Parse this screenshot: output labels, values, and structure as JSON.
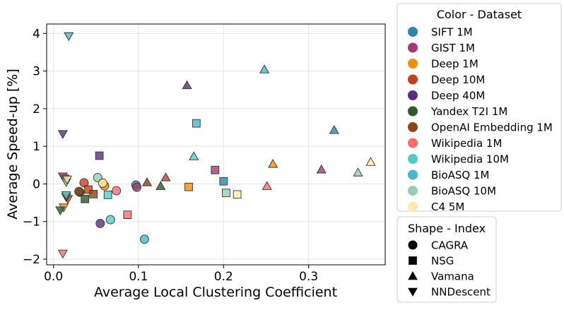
{
  "chart_data": {
    "type": "scatter",
    "title": "",
    "xlabel": "Average Local Clustering Coefficient",
    "ylabel": "Average Speed-up [%]",
    "xlim": [
      -0.008,
      0.39
    ],
    "ylim": [
      -2.15,
      4.25
    ],
    "xticks": [
      0.0,
      0.1,
      0.2,
      0.3
    ],
    "xtick_labels": [
      "0.0",
      "0.1",
      "0.2",
      "0.3"
    ],
    "yticks": [
      -2,
      -1,
      0,
      1,
      2,
      3,
      4
    ],
    "ytick_labels": [
      "−2",
      "−1",
      "0",
      "1",
      "2",
      "3",
      "4"
    ],
    "grid": true,
    "legend_color": {
      "title": "Color - Dataset",
      "placement": "outside-right-top",
      "entries": [
        {
          "label": "SIFT 1M",
          "color": "#2e86ab"
        },
        {
          "label": "GIST 1M",
          "color": "#a23b72"
        },
        {
          "label": "Deep 1M",
          "color": "#f18f01"
        },
        {
          "label": "Deep 10M",
          "color": "#c73e1d"
        },
        {
          "label": "Deep 40M",
          "color": "#592e83"
        },
        {
          "label": "Yandex T2I 1M",
          "color": "#2d5a27"
        },
        {
          "label": "OpenAI Embedding 1M",
          "color": "#8b4513"
        },
        {
          "label": "Wikipedia 1M",
          "color": "#ff6b6b"
        },
        {
          "label": "Wikipedia 10M",
          "color": "#4ecdc4"
        },
        {
          "label": "BioASQ 1M",
          "color": "#45b7d1"
        },
        {
          "label": "BioASQ 10M",
          "color": "#96ceb4"
        },
        {
          "label": "C4 5M",
          "color": "#ffeaa7"
        }
      ]
    },
    "legend_shape": {
      "title": "Shape - Index",
      "placement": "outside-right-bottom",
      "entries": [
        {
          "label": "CAGRA",
          "marker": "circle"
        },
        {
          "label": "NSG",
          "marker": "square"
        },
        {
          "label": "Vamana",
          "marker": "triangle-up"
        },
        {
          "label": "NNDescent",
          "marker": "triangle-down"
        }
      ]
    },
    "points": [
      {
        "dataset": "SIFT 1M",
        "index": "CAGRA",
        "x": 0.097,
        "y": -0.03
      },
      {
        "dataset": "SIFT 1M",
        "index": "NSG",
        "x": 0.2,
        "y": 0.07
      },
      {
        "dataset": "SIFT 1M",
        "index": "Vamana",
        "x": 0.33,
        "y": 1.43
      },
      {
        "dataset": "SIFT 1M",
        "index": "NNDescent",
        "x": 0.013,
        "y": 0.15
      },
      {
        "dataset": "GIST 1M",
        "index": "CAGRA",
        "x": 0.098,
        "y": -0.09
      },
      {
        "dataset": "GIST 1M",
        "index": "NSG",
        "x": 0.19,
        "y": 0.37
      },
      {
        "dataset": "GIST 1M",
        "index": "Vamana",
        "x": 0.315,
        "y": 0.38
      },
      {
        "dataset": "GIST 1M",
        "index": "NNDescent",
        "x": 0.011,
        "y": 0.2
      },
      {
        "dataset": "Deep 1M",
        "index": "CAGRA",
        "x": 0.06,
        "y": -0.05
      },
      {
        "dataset": "Deep 1M",
        "index": "NSG",
        "x": 0.159,
        "y": -0.08
      },
      {
        "dataset": "Deep 1M",
        "index": "Vamana",
        "x": 0.258,
        "y": 0.53
      },
      {
        "dataset": "Deep 1M",
        "index": "NNDescent",
        "x": 0.012,
        "y": -0.62
      },
      {
        "dataset": "Deep 10M",
        "index": "CAGRA",
        "x": 0.036,
        "y": 0.03
      },
      {
        "dataset": "Deep 10M",
        "index": "NSG",
        "x": 0.041,
        "y": -0.15
      },
      {
        "dataset": "Deep 10M",
        "index": "Vamana",
        "x": 0.132,
        "y": 0.17
      },
      {
        "dataset": "Deep 10M",
        "index": "NNDescent",
        "x": 0.017,
        "y": -0.4
      },
      {
        "dataset": "Deep 40M",
        "index": "CAGRA",
        "x": 0.055,
        "y": -1.05
      },
      {
        "dataset": "Deep 40M",
        "index": "NSG",
        "x": 0.054,
        "y": 0.75
      },
      {
        "dataset": "Deep 40M",
        "index": "Vamana",
        "x": 0.157,
        "y": 2.62
      },
      {
        "dataset": "Deep 40M",
        "index": "NNDescent",
        "x": 0.011,
        "y": 1.33
      },
      {
        "dataset": "Yandex T2I 1M",
        "index": "CAGRA",
        "x": 0.031,
        "y": -0.22
      },
      {
        "dataset": "Yandex T2I 1M",
        "index": "NSG",
        "x": 0.037,
        "y": -0.4
      },
      {
        "dataset": "Yandex T2I 1M",
        "index": "Vamana",
        "x": 0.126,
        "y": -0.06
      },
      {
        "dataset": "Yandex T2I 1M",
        "index": "NNDescent",
        "x": 0.008,
        "y": -0.7
      },
      {
        "dataset": "OpenAI Embedding 1M",
        "index": "CAGRA",
        "x": 0.03,
        "y": -0.2
      },
      {
        "dataset": "OpenAI Embedding 1M",
        "index": "NSG",
        "x": 0.047,
        "y": -0.27
      },
      {
        "dataset": "OpenAI Embedding 1M",
        "index": "Vamana",
        "x": 0.11,
        "y": 0.04
      },
      {
        "dataset": "OpenAI Embedding 1M",
        "index": "NNDescent",
        "x": 0.015,
        "y": -0.35
      },
      {
        "dataset": "Wikipedia 1M",
        "index": "CAGRA",
        "x": 0.074,
        "y": -0.18
      },
      {
        "dataset": "Wikipedia 1M",
        "index": "NSG",
        "x": 0.087,
        "y": -0.82
      },
      {
        "dataset": "Wikipedia 1M",
        "index": "Vamana",
        "x": 0.251,
        "y": -0.06
      },
      {
        "dataset": "Wikipedia 1M",
        "index": "NNDescent",
        "x": 0.011,
        "y": -1.85
      },
      {
        "dataset": "Wikipedia 10M",
        "index": "CAGRA",
        "x": 0.067,
        "y": -0.95
      },
      {
        "dataset": "Wikipedia 10M",
        "index": "NSG",
        "x": 0.064,
        "y": -0.29
      },
      {
        "dataset": "Wikipedia 10M",
        "index": "Vamana",
        "x": 0.165,
        "y": 0.73
      },
      {
        "dataset": "Wikipedia 10M",
        "index": "NNDescent",
        "x": 0.015,
        "y": -0.3
      },
      {
        "dataset": "BioASQ 1M",
        "index": "CAGRA",
        "x": 0.107,
        "y": -1.47
      },
      {
        "dataset": "BioASQ 1M",
        "index": "NSG",
        "x": 0.168,
        "y": 1.61
      },
      {
        "dataset": "BioASQ 1M",
        "index": "Vamana",
        "x": 0.248,
        "y": 3.04
      },
      {
        "dataset": "BioASQ 1M",
        "index": "NNDescent",
        "x": 0.018,
        "y": 3.93
      },
      {
        "dataset": "BioASQ 10M",
        "index": "CAGRA",
        "x": 0.052,
        "y": 0.17
      },
      {
        "dataset": "BioASQ 10M",
        "index": "NSG",
        "x": 0.203,
        "y": -0.24
      },
      {
        "dataset": "BioASQ 10M",
        "index": "Vamana",
        "x": 0.358,
        "y": 0.3
      },
      {
        "dataset": "BioASQ 10M",
        "index": "NNDescent",
        "x": 0.015,
        "y": 0.05
      },
      {
        "dataset": "C4 5M",
        "index": "CAGRA",
        "x": 0.058,
        "y": 0.02
      },
      {
        "dataset": "C4 5M",
        "index": "NSG",
        "x": 0.216,
        "y": -0.28
      },
      {
        "dataset": "C4 5M",
        "index": "Vamana",
        "x": 0.373,
        "y": 0.58
      },
      {
        "dataset": "C4 5M",
        "index": "NNDescent",
        "x": 0.016,
        "y": 0.12
      }
    ]
  }
}
